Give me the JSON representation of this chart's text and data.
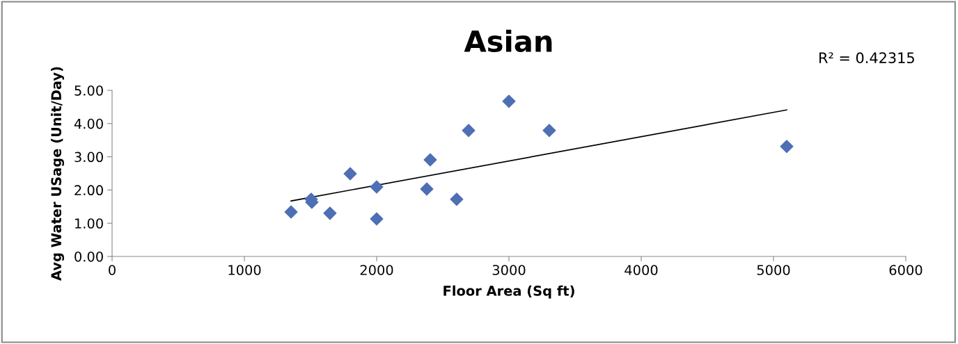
{
  "chart_data": {
    "type": "scatter",
    "title": "Asian",
    "xlabel": "Floor Area (Sq ft)",
    "ylabel": "Avg Water USage (Unit/Day)",
    "annotations": [
      "R² = 0.42315"
    ],
    "grid": false,
    "xlim": [
      0,
      6000
    ],
    "xticks": [
      0,
      1000,
      2000,
      3000,
      4000,
      5000,
      6000
    ],
    "ylim": [
      0,
      5
    ],
    "yticks": [
      {
        "value": 0,
        "label": "0.00"
      },
      {
        "value": 1,
        "label": "1.00"
      },
      {
        "value": 2,
        "label": "2.00"
      },
      {
        "value": 3,
        "label": "3.00"
      },
      {
        "value": 4,
        "label": "4.00"
      },
      {
        "value": 5,
        "label": "5.00"
      }
    ],
    "series": [
      {
        "marker": "diamond",
        "color": "#4f6fb5",
        "x": [
          1353,
          1505,
          1510,
          1647,
          1800,
          2000,
          2000,
          2379,
          2405,
          2605,
          2695,
          3000,
          3305,
          5100
        ],
        "values": [
          1.34,
          1.72,
          1.63,
          1.3,
          2.49,
          2.09,
          1.13,
          2.03,
          2.91,
          1.72,
          3.79,
          4.67,
          3.79,
          3.31
        ]
      },
      {
        "type": "line",
        "color": "#000000",
        "x": [
          1353,
          5100
        ],
        "values": [
          1.67,
          4.41
        ]
      }
    ]
  }
}
